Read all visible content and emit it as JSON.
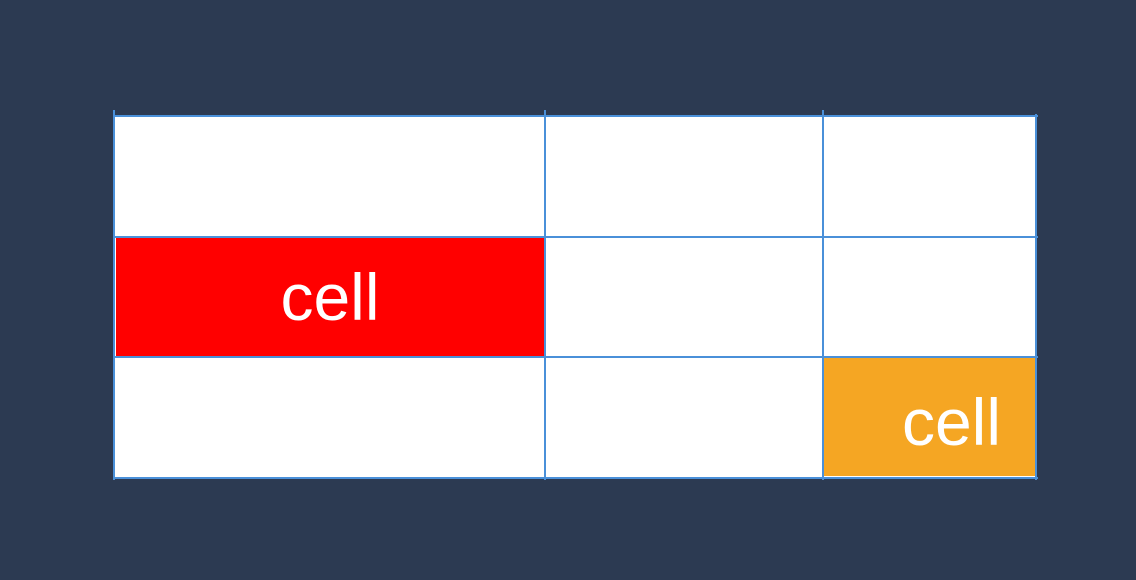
{
  "grid": {
    "rows": 3,
    "columns": 3,
    "line_color": "#4a90d9",
    "background_color": "#2c3a52",
    "cell_background": "#ffffff"
  },
  "cells": [
    {
      "row": 2,
      "column": 1,
      "label": "cell",
      "color": "#ff0000",
      "text_align": "center"
    },
    {
      "row": 3,
      "column": 3,
      "label": "cell",
      "color": "#f5a623",
      "text_align": "right"
    }
  ]
}
